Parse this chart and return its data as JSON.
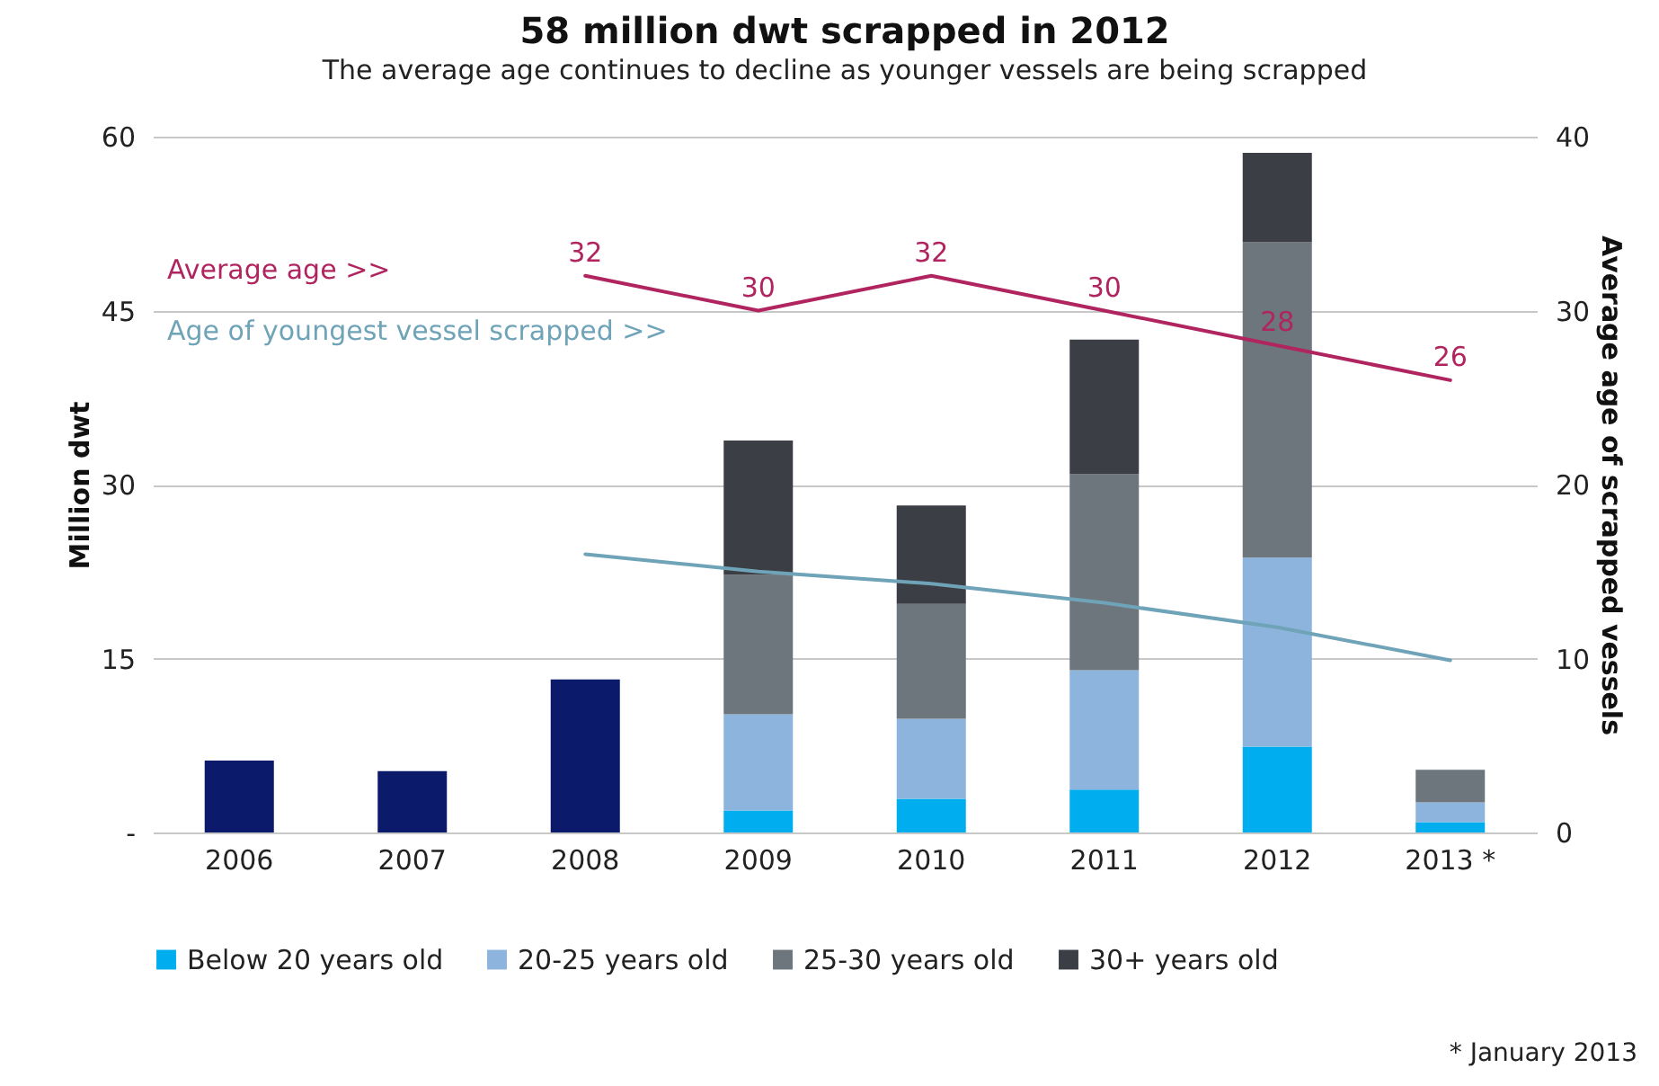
{
  "chart_data": {
    "type": "bar",
    "title": "58 million dwt scrapped in 2012",
    "subtitle": "The average age continues to decline as younger vessels  are being scrapped",
    "ylabel": "Million dwt",
    "y2label": "Average age of scrapped vessels",
    "categories": [
      "2006",
      "2007",
      "2008",
      "2009",
      "2010",
      "2011",
      "2012",
      "2013 *"
    ],
    "stacked": true,
    "series": [
      {
        "color": "#0b1a6b",
        "values": [
          6.2,
          5.3,
          13.2,
          null,
          null,
          null,
          null,
          null
        ]
      },
      {
        "name": "Below 20 years old",
        "color": "#00aeef",
        "values": [
          null,
          null,
          null,
          1.9,
          2.9,
          3.7,
          7.4,
          0.9
        ]
      },
      {
        "name": "20-25 years old",
        "color": "#8db4dc",
        "values": [
          null,
          null,
          null,
          8.3,
          6.9,
          10.3,
          16.3,
          1.7
        ]
      },
      {
        "name": "25-30 years old",
        "color": "#6d767d",
        "values": [
          null,
          null,
          null,
          12.0,
          9.9,
          16.9,
          27.2,
          2.8
        ]
      },
      {
        "name": "30+ years old",
        "color": "#3b3e45",
        "values": [
          null,
          null,
          null,
          11.6,
          8.5,
          11.6,
          7.7,
          null
        ]
      },
      {
        "name": "Average age >>",
        "type": "line",
        "axis": "y2",
        "color": "#b0245f",
        "values": [
          null,
          null,
          32,
          30,
          32,
          30,
          28,
          26
        ],
        "value_labels": [
          null,
          null,
          "32",
          "30",
          "32",
          "30",
          "28",
          "26"
        ]
      },
      {
        "name": "Age of youngest vessel scrapped >>",
        "type": "line",
        "axis": "y2",
        "color": "#6fa3b8",
        "values": [
          null,
          null,
          16.0,
          15.0,
          14.3,
          13.2,
          11.8,
          9.9
        ]
      }
    ],
    "ylim": [
      0,
      60
    ],
    "yticks": [
      {
        "value": 0,
        "label": "-"
      },
      15,
      30,
      45,
      60
    ],
    "y2lim": [
      0,
      40
    ],
    "y2ticks": [
      0,
      10,
      20,
      30,
      40
    ],
    "grid": "y",
    "legend": "bottom",
    "annotations": [
      "* January 2013"
    ]
  }
}
